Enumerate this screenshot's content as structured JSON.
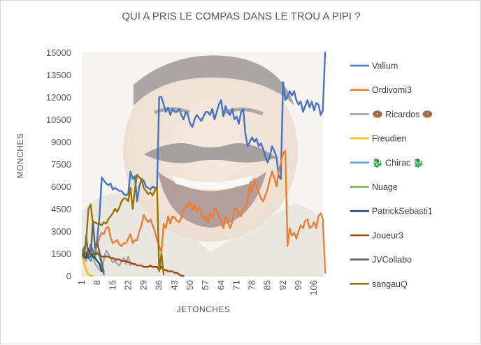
{
  "chart_data": {
    "type": "line",
    "title": "QUI A PRIS LE COMPAS DANS LE TROU A PIPI ?",
    "xlabel": "JETONCHES",
    "ylabel": "MONCHES",
    "ylim": [
      0,
      15000
    ],
    "y_ticks": [
      "0",
      "1500",
      "3000",
      "4500",
      "6000",
      "7500",
      "9000",
      "10500",
      "12000",
      "13500",
      "15000"
    ],
    "x_range": [
      1,
      111
    ],
    "x_ticks": [
      "1",
      "8",
      "15",
      "22",
      "29",
      "36",
      "43",
      "50",
      "57",
      "64",
      "71",
      "78",
      "85",
      "92",
      "99",
      "106"
    ],
    "grid": false,
    "legend_position": "right",
    "background_image": "laughing-man-photo",
    "series": [
      {
        "name": "Valium",
        "color": "#4472C4",
        "x": [
          1,
          2,
          3,
          4,
          5,
          6,
          7,
          8,
          9,
          10,
          11,
          12,
          13,
          14,
          15,
          16,
          17,
          18,
          19,
          20,
          21,
          22,
          23,
          24,
          25,
          26,
          27,
          28,
          29,
          30,
          31,
          32,
          33,
          34,
          35,
          36,
          37,
          38,
          39,
          40,
          41,
          42,
          43,
          44,
          45,
          46,
          47,
          48,
          49,
          50,
          51,
          52,
          53,
          54,
          55,
          56,
          57,
          58,
          59,
          60,
          61,
          62,
          63,
          64,
          65,
          66,
          67,
          68,
          69,
          70,
          71,
          72,
          73,
          74,
          75,
          76,
          77,
          78,
          79,
          80,
          81,
          82,
          83,
          84,
          85,
          86,
          87,
          88,
          89,
          90,
          91,
          92,
          93,
          94,
          95,
          96,
          97,
          98,
          99,
          100,
          101,
          102,
          103,
          104,
          105,
          106,
          107,
          108,
          109,
          110,
          111
        ],
        "y": [
          1500,
          1900,
          1200,
          1700,
          2100,
          1700,
          1400,
          2500,
          4000,
          6600,
          6400,
          6200,
          6100,
          6200,
          5800,
          5900,
          5800,
          5700,
          5700,
          5500,
          5400,
          5500,
          7000,
          6500,
          6700,
          5000,
          6000,
          6500,
          6400,
          6000,
          5900,
          5800,
          6000,
          5900,
          5900,
          12000,
          12000,
          11500,
          11000,
          11300,
          10800,
          11200,
          11000,
          11000,
          11200,
          10800,
          10500,
          11000,
          10800,
          10200,
          10000,
          10500,
          10800,
          10600,
          10400,
          10700,
          11000,
          11000,
          10800,
          11200,
          10500,
          11000,
          11500,
          11800,
          10700,
          11400,
          11000,
          10800,
          11200,
          10500,
          10700,
          10200,
          11000,
          11200,
          9500,
          8700,
          9000,
          9300,
          9000,
          9200,
          8700,
          8900,
          8500,
          8000,
          7600,
          8000,
          8700,
          8400,
          8000,
          6700,
          6500,
          13000,
          11800,
          12000,
          12400,
          12100,
          12400,
          11800,
          11500,
          11700,
          11000,
          11400,
          11800,
          11300,
          11700,
          11100,
          11600,
          11500,
          10800,
          11100,
          15000
        ]
      },
      {
        "name": "Ordivomi3",
        "color": "#ED7D31",
        "x": [
          1,
          2,
          3,
          4,
          5,
          6,
          7,
          8,
          9,
          10,
          11,
          12,
          13,
          14,
          15,
          16,
          17,
          18,
          19,
          20,
          21,
          22,
          23,
          24,
          25,
          26,
          27,
          28,
          29,
          30,
          31,
          32,
          33,
          34,
          35,
          36,
          37,
          38,
          39,
          40,
          41,
          42,
          43,
          44,
          45,
          46,
          47,
          48,
          49,
          50,
          51,
          52,
          53,
          54,
          55,
          56,
          57,
          58,
          59,
          60,
          61,
          62,
          63,
          64,
          65,
          66,
          67,
          68,
          69,
          70,
          71,
          72,
          73,
          74,
          75,
          76,
          77,
          78,
          79,
          80,
          81,
          82,
          83,
          84,
          85,
          86,
          87,
          88,
          89,
          90,
          91,
          92,
          93,
          94,
          95,
          96,
          97,
          98,
          99,
          100,
          101,
          102,
          103,
          104,
          105,
          106,
          107,
          108,
          109,
          110,
          111
        ],
        "y": [
          1500,
          1500,
          1500,
          1500,
          1500,
          1500,
          1700,
          2000,
          2600,
          2900,
          2800,
          3200,
          3300,
          2600,
          2200,
          2300,
          2400,
          2100,
          2000,
          2200,
          2200,
          2500,
          2800,
          2200,
          2400,
          2400,
          3000,
          3400,
          4100,
          3800,
          3600,
          3800,
          3400,
          3000,
          2400,
          2000,
          1600,
          3500,
          3200,
          4000,
          3500,
          4000,
          3900,
          3700,
          3600,
          3900,
          4500,
          4700,
          4600,
          5000,
          4400,
          4800,
          4300,
          4600,
          4200,
          3800,
          4000,
          3600,
          4200,
          3900,
          4500,
          4400,
          4000,
          3700,
          3200,
          4000,
          3700,
          3200,
          3600,
          4500,
          4500,
          4200,
          4000,
          4500,
          4600,
          5100,
          6100,
          5600,
          6500,
          6000,
          5600,
          5200,
          5000,
          5400,
          5800,
          6500,
          7000,
          6600,
          6000,
          7000,
          7600,
          8200,
          8400,
          2000,
          3200,
          2700,
          2900,
          2500,
          3000,
          3400,
          3200,
          3700,
          3800,
          3200,
          3300,
          3600,
          3200,
          4000,
          4200,
          3800,
          200
        ]
      },
      {
        "name": "🍩 Ricardos 🍩",
        "color": "#A5A5A5",
        "x": [
          1,
          2,
          3,
          4,
          5,
          6,
          7,
          8,
          9,
          10,
          11,
          12,
          13,
          14,
          15,
          16,
          17,
          18,
          19,
          20,
          21,
          22,
          23
        ],
        "y": [
          1500,
          1300,
          1000,
          1700,
          2000,
          1400,
          800,
          600,
          400,
          300,
          1100,
          1700,
          1500,
          1200,
          900,
          1000,
          800,
          700,
          1000,
          1200,
          800,
          1300,
          700
        ]
      },
      {
        "name": "Freudien",
        "color": "#FFC000",
        "x": [
          1,
          2,
          3,
          4,
          5,
          6
        ],
        "y": [
          1500,
          900,
          400,
          100,
          0,
          0
        ]
      },
      {
        "name": "🐉 Chirac 🐉",
        "color": "#5B9BD5",
        "x": [
          1,
          2,
          3,
          4,
          5,
          6,
          7
        ],
        "y": [
          1500,
          1700,
          1400,
          1200,
          1000,
          1300,
          1800
        ]
      },
      {
        "name": "Nuage",
        "color": "#70AD47",
        "x": [
          1,
          2,
          3,
          4,
          5,
          6,
          7,
          8,
          9,
          10,
          11
        ],
        "y": [
          1500,
          1400,
          1600,
          1500,
          1400,
          1400,
          1300,
          1600,
          1300,
          800,
          300
        ]
      },
      {
        "name": "PatrickSebasti1",
        "color": "#264478",
        "x": [
          1,
          2,
          3,
          4,
          5,
          6,
          7,
          8,
          9,
          10
        ],
        "y": [
          1500,
          1300,
          1200,
          1800,
          1500,
          1300,
          1200,
          1000,
          800,
          300
        ]
      },
      {
        "name": "Joueur3",
        "color": "#9E480E",
        "x": [
          1,
          2,
          3,
          4,
          5,
          6,
          7,
          8,
          9,
          10,
          11,
          12,
          13,
          14,
          15,
          16,
          17,
          18,
          19,
          20,
          21,
          22,
          23,
          24,
          25,
          26,
          27,
          28,
          29,
          30,
          31,
          32,
          33,
          34,
          35,
          36,
          37,
          38,
          39,
          40,
          41,
          42,
          43,
          44,
          45,
          46,
          47
        ],
        "y": [
          1500,
          1500,
          1500,
          1500,
          1500,
          1500,
          1450,
          1500,
          1400,
          1300,
          1300,
          1300,
          1300,
          1200,
          1200,
          1100,
          1100,
          1100,
          1000,
          1000,
          1000,
          900,
          900,
          800,
          800,
          700,
          700,
          700,
          600,
          600,
          600,
          700,
          600,
          600,
          600,
          400,
          600,
          400,
          400,
          300,
          300,
          300,
          200,
          200,
          100,
          0,
          0
        ]
      },
      {
        "name": "JVCollabo",
        "color": "#636363",
        "x": [
          1,
          2,
          3,
          4,
          5,
          6,
          7,
          8,
          9,
          10,
          11
        ],
        "y": [
          1500,
          1200,
          2700,
          1200,
          1300,
          3700,
          1900,
          2200,
          1600,
          900,
          100
        ]
      },
      {
        "name": "sangauQ",
        "color": "#997300",
        "x": [
          1,
          2,
          3,
          4,
          5,
          6,
          7,
          8,
          9,
          10,
          11,
          12,
          13,
          14,
          15,
          16,
          17,
          18,
          19,
          20,
          21,
          22,
          23,
          24,
          25,
          26,
          27,
          28,
          29,
          30,
          31,
          32,
          33,
          34,
          35,
          36,
          37,
          38
        ],
        "y": [
          1500,
          1600,
          2400,
          4500,
          4800,
          3500,
          3600,
          3500,
          3500,
          3400,
          3600,
          3500,
          3800,
          4000,
          4200,
          4500,
          4300,
          4600,
          5000,
          5200,
          5200,
          5000,
          5900,
          4500,
          5800,
          6800,
          6600,
          6500,
          5900,
          5700,
          5500,
          5600,
          5400,
          5700,
          6000,
          300,
          1500,
          100
        ]
      }
    ]
  }
}
